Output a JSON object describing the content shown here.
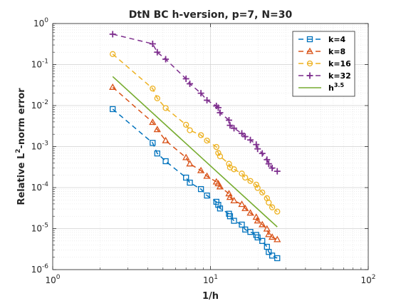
{
  "chart_data": {
    "type": "line",
    "title": "DtN BC h-version, p=7, N=30",
    "xlabel": "1/h",
    "ylabel": "Relative L^2-norm error",
    "xscale": "log",
    "yscale": "log",
    "xlim": [
      1,
      100
    ],
    "ylim": [
      1e-06,
      1
    ],
    "xticks": [
      {
        "value": 1,
        "base": "10",
        "exp": "0"
      },
      {
        "value": 10,
        "base": "10",
        "exp": "1"
      },
      {
        "value": 100,
        "base": "10",
        "exp": "2"
      }
    ],
    "yticks": [
      {
        "value": 1,
        "base": "10",
        "exp": "0"
      },
      {
        "value": 0.1,
        "base": "10",
        "exp": "-1"
      },
      {
        "value": 0.01,
        "base": "10",
        "exp": "-2"
      },
      {
        "value": 0.001,
        "base": "10",
        "exp": "-3"
      },
      {
        "value": 0.0001,
        "base": "10",
        "exp": "-4"
      },
      {
        "value": 1e-05,
        "base": "10",
        "exp": "-5"
      },
      {
        "value": 1e-06,
        "base": "10",
        "exp": "-6"
      }
    ],
    "grid": true,
    "legend_position": "top-right",
    "series": [
      {
        "name": "k=4",
        "color": "#0072BD",
        "marker": "square",
        "dashed": true,
        "x": [
          2.4,
          4.3,
          4.6,
          5.2,
          7.0,
          7.4,
          8.7,
          9.5,
          10.9,
          11.2,
          11.5,
          13.1,
          13.3,
          14.1,
          15.8,
          16.6,
          17.9,
          19.5,
          19.9,
          21.3,
          22.8,
          23.4,
          24.6,
          26.5
        ],
        "y": [
          0.0082,
          0.00123,
          0.00068,
          0.00044,
          0.000175,
          0.000132,
          9.2e-05,
          6.4e-05,
          4.5e-05,
          3.8e-05,
          3.1e-05,
          2.3e-05,
          2e-05,
          1.55e-05,
          1.25e-05,
          9.5e-06,
          8.3e-06,
          7e-06,
          6.1e-06,
          5e-06,
          3.6e-06,
          2.7e-06,
          2.2e-06,
          1.9e-06
        ]
      },
      {
        "name": "k=8",
        "color": "#D95319",
        "marker": "triangle",
        "dashed": true,
        "x": [
          2.4,
          4.3,
          4.6,
          5.2,
          7.0,
          7.4,
          8.7,
          9.5,
          10.9,
          11.2,
          11.5,
          13.1,
          13.3,
          14.1,
          15.8,
          16.6,
          17.9,
          19.5,
          19.9,
          21.3,
          22.8,
          23.4,
          24.6,
          26.5
        ],
        "y": [
          0.028,
          0.0039,
          0.0026,
          0.0014,
          0.00054,
          0.00038,
          0.00026,
          0.00019,
          0.000138,
          0.000125,
          0.000105,
          7.1e-05,
          5.8e-05,
          4.8e-05,
          3.9e-05,
          3.1e-05,
          2.4e-05,
          1.9e-05,
          1.55e-05,
          1.25e-05,
          9.8e-06,
          7.2e-06,
          6.2e-06,
          5.4e-06
        ]
      },
      {
        "name": "k=16",
        "color": "#EDB120",
        "marker": "circle",
        "dashed": true,
        "x": [
          2.4,
          4.3,
          4.6,
          5.2,
          7.0,
          7.4,
          8.7,
          9.5,
          10.9,
          11.2,
          11.5,
          13.1,
          13.3,
          14.1,
          15.8,
          16.6,
          17.9,
          19.5,
          19.9,
          21.3,
          22.8,
          23.4,
          24.6,
          26.5
        ],
        "y": [
          0.18,
          0.026,
          0.015,
          0.0087,
          0.0034,
          0.0025,
          0.0019,
          0.0014,
          0.00098,
          0.0007,
          0.00058,
          0.00038,
          0.00031,
          0.00028,
          0.00022,
          0.000175,
          0.000145,
          0.000118,
          9.8e-05,
          7.6e-05,
          5.5e-05,
          4.3e-05,
          3.3e-05,
          2.6e-05
        ]
      },
      {
        "name": "k=32",
        "color": "#7E2F8E",
        "marker": "plus",
        "dashed": true,
        "x": [
          2.4,
          4.3,
          4.6,
          5.2,
          7.0,
          7.4,
          8.7,
          9.5,
          10.9,
          11.2,
          11.5,
          13.1,
          13.3,
          14.1,
          15.8,
          16.6,
          17.9,
          19.5,
          19.9,
          21.3,
          22.8,
          23.4,
          24.6,
          26.5
        ],
        "y": [
          0.55,
          0.32,
          0.2,
          0.135,
          0.045,
          0.034,
          0.02,
          0.0135,
          0.0098,
          0.0089,
          0.0067,
          0.0044,
          0.0033,
          0.0028,
          0.0021,
          0.00175,
          0.00145,
          0.00112,
          0.00088,
          0.00068,
          0.00048,
          0.00038,
          0.0003,
          0.00025
        ]
      },
      {
        "name": "h^3.5",
        "color": "#77AC30",
        "marker": "none",
        "dashed": false,
        "x": [
          2.4,
          26.5
        ],
        "y": [
          0.051,
          1.1e-05
        ]
      }
    ]
  }
}
